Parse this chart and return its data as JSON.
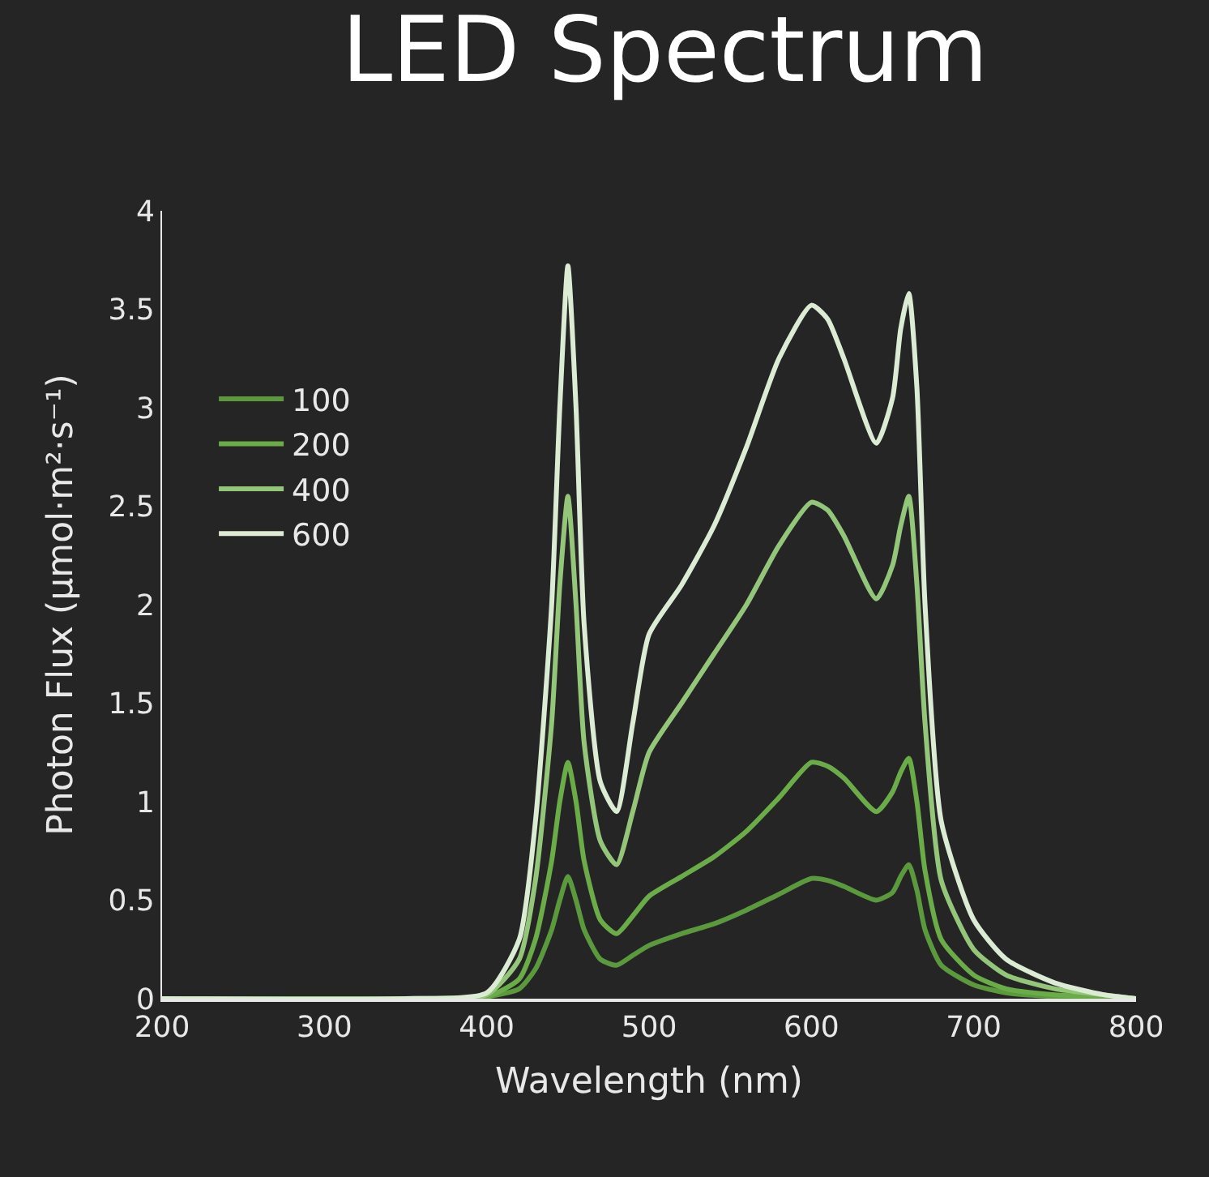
{
  "chart_data": {
    "type": "line",
    "title": "LED Spectrum",
    "xlabel": "Wavelength (nm)",
    "ylabel": "Photon Flux (μmol·m²·s⁻¹)",
    "x": [
      200,
      350,
      400,
      420,
      430,
      440,
      445,
      450,
      455,
      460,
      470,
      480,
      490,
      500,
      520,
      540,
      560,
      580,
      600,
      610,
      620,
      640,
      650,
      655,
      660,
      665,
      670,
      680,
      700,
      720,
      750,
      780,
      800
    ],
    "series": [
      {
        "name": "100",
        "color": "#5a9a3c",
        "values": [
          0,
          0,
          0.01,
          0.05,
          0.15,
          0.35,
          0.5,
          0.62,
          0.5,
          0.35,
          0.2,
          0.17,
          0.22,
          0.27,
          0.33,
          0.38,
          0.45,
          0.53,
          0.61,
          0.6,
          0.57,
          0.5,
          0.54,
          0.62,
          0.68,
          0.55,
          0.35,
          0.17,
          0.07,
          0.03,
          0.01,
          0,
          0
        ]
      },
      {
        "name": "200",
        "color": "#6aac48",
        "values": [
          0,
          0,
          0.01,
          0.1,
          0.3,
          0.7,
          1.0,
          1.2,
          1.0,
          0.7,
          0.4,
          0.33,
          0.42,
          0.52,
          0.62,
          0.72,
          0.85,
          1.02,
          1.2,
          1.18,
          1.12,
          0.95,
          1.05,
          1.15,
          1.22,
          1.0,
          0.65,
          0.3,
          0.12,
          0.05,
          0.02,
          0.01,
          0
        ]
      },
      {
        "name": "400",
        "color": "#93c679",
        "values": [
          0,
          0,
          0.02,
          0.2,
          0.6,
          1.4,
          2.1,
          2.55,
          2.0,
          1.3,
          0.8,
          0.68,
          0.95,
          1.25,
          1.5,
          1.75,
          2.0,
          2.3,
          2.52,
          2.48,
          2.35,
          2.03,
          2.2,
          2.4,
          2.55,
          2.1,
          1.4,
          0.6,
          0.25,
          0.12,
          0.05,
          0.02,
          0
        ]
      },
      {
        "name": "600",
        "color": "#dcebd4",
        "values": [
          0,
          0,
          0.03,
          0.3,
          0.9,
          2.0,
          3.0,
          3.72,
          3.0,
          1.9,
          1.1,
          0.95,
          1.4,
          1.85,
          2.1,
          2.4,
          2.8,
          3.25,
          3.52,
          3.45,
          3.25,
          2.82,
          3.05,
          3.4,
          3.58,
          3.1,
          2.0,
          0.9,
          0.4,
          0.2,
          0.08,
          0.02,
          0
        ]
      }
    ],
    "xlim": [
      200,
      800
    ],
    "xticks": [
      200,
      300,
      400,
      500,
      600,
      700,
      800
    ],
    "ylim": [
      0,
      4
    ],
    "yticks": [
      0,
      0.5,
      1,
      1.5,
      2,
      2.5,
      3,
      3.5,
      4
    ],
    "grid": false,
    "legend": "top left",
    "marker": "none",
    "line_style": "solid"
  }
}
